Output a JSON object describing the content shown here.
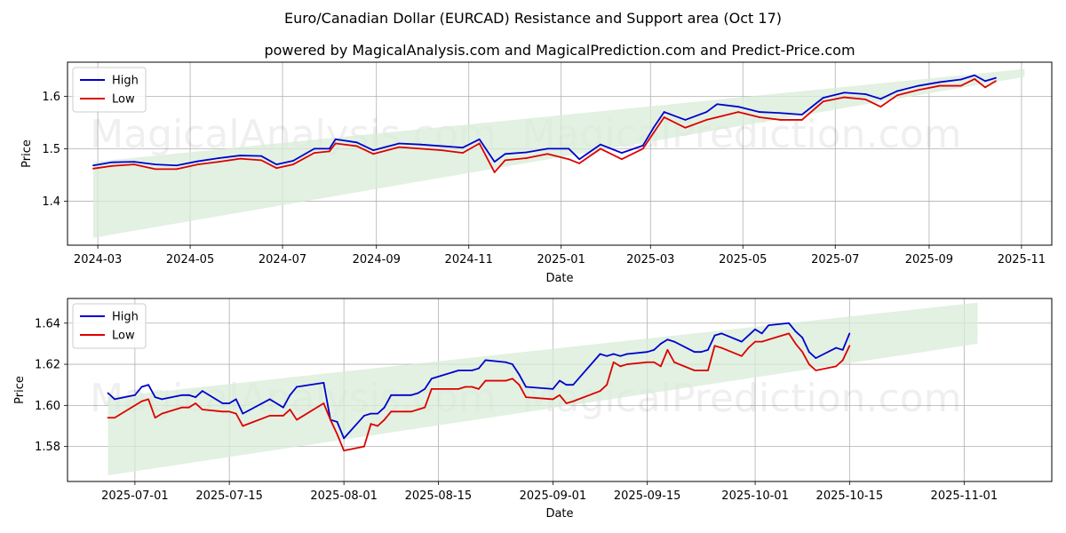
{
  "title": "Euro/Canadian Dollar (EURCAD) Resistance and Support area (Oct 17)",
  "subtitle": "powered by MagicalAnalysis.com and MagicalPrediction.com and Predict-Price.com",
  "watermarks": [
    "MagicalAnalysis.com",
    "MagicalPrediction.com"
  ],
  "colors": {
    "high": "#0000cc",
    "low": "#dd0000",
    "band": "#d8ecd8",
    "grid": "#b0b0b0"
  },
  "chart_data": [
    {
      "type": "line",
      "name": "full-range",
      "xlabel": "Date",
      "ylabel": "Price",
      "x_range": [
        "2024-02-10",
        "2025-11-21"
      ],
      "ylim": [
        1.316,
        1.665
      ],
      "x_ticks": [
        "2024-03",
        "2024-05",
        "2024-07",
        "2024-09",
        "2024-11",
        "2025-01",
        "2025-03",
        "2025-05",
        "2025-07",
        "2025-09",
        "2025-11"
      ],
      "y_ticks": [
        "1.4",
        "1.5",
        "1.6"
      ],
      "legend": {
        "position": "top-left",
        "entries": [
          "High",
          "Low"
        ]
      },
      "band": {
        "start": "2024-02-27",
        "end": "2025-11-03",
        "upper": [
          1.475,
          1.652
        ],
        "lower": [
          1.33,
          1.637
        ]
      },
      "x": [
        "2024-02-27",
        "2024-03-10",
        "2024-03-25",
        "2024-04-08",
        "2024-04-22",
        "2024-05-06",
        "2024-05-20",
        "2024-06-03",
        "2024-06-17",
        "2024-06-27",
        "2024-07-08",
        "2024-07-22",
        "2024-08-01",
        "2024-08-05",
        "2024-08-19",
        "2024-08-30",
        "2024-09-16",
        "2024-09-30",
        "2024-10-14",
        "2024-10-28",
        "2024-11-08",
        "2024-11-18",
        "2024-11-25",
        "2024-12-09",
        "2024-12-23",
        "2025-01-06",
        "2025-01-13",
        "2025-01-27",
        "2025-02-10",
        "2025-02-24",
        "2025-03-03",
        "2025-03-10",
        "2025-03-24",
        "2025-04-07",
        "2025-04-14",
        "2025-04-28",
        "2025-05-12",
        "2025-05-26",
        "2025-06-09",
        "2025-06-23",
        "2025-07-07",
        "2025-07-21",
        "2025-07-31",
        "2025-08-11",
        "2025-08-25",
        "2025-09-08",
        "2025-09-22",
        "2025-10-01",
        "2025-10-08",
        "2025-10-15"
      ],
      "series": [
        {
          "name": "High",
          "values": [
            1.468,
            1.474,
            1.475,
            1.47,
            1.468,
            1.476,
            1.482,
            1.487,
            1.486,
            1.47,
            1.477,
            1.5,
            1.5,
            1.518,
            1.512,
            1.497,
            1.51,
            1.508,
            1.505,
            1.502,
            1.518,
            1.475,
            1.49,
            1.493,
            1.5,
            1.5,
            1.48,
            1.508,
            1.492,
            1.506,
            1.54,
            1.57,
            1.555,
            1.57,
            1.585,
            1.58,
            1.57,
            1.568,
            1.565,
            1.597,
            1.607,
            1.604,
            1.595,
            1.61,
            1.62,
            1.627,
            1.632,
            1.64,
            1.629,
            1.635
          ]
        },
        {
          "name": "Low",
          "values": [
            1.462,
            1.467,
            1.47,
            1.461,
            1.461,
            1.47,
            1.475,
            1.481,
            1.478,
            1.463,
            1.47,
            1.492,
            1.495,
            1.51,
            1.505,
            1.49,
            1.503,
            1.5,
            1.497,
            1.492,
            1.51,
            1.455,
            1.478,
            1.482,
            1.49,
            1.48,
            1.472,
            1.5,
            1.48,
            1.5,
            1.53,
            1.56,
            1.54,
            1.555,
            1.56,
            1.57,
            1.56,
            1.555,
            1.555,
            1.59,
            1.598,
            1.594,
            1.58,
            1.602,
            1.612,
            1.62,
            1.62,
            1.633,
            1.617,
            1.629
          ]
        }
      ]
    },
    {
      "type": "line",
      "name": "zoomed",
      "xlabel": "Date",
      "ylabel": "Price",
      "x_range": [
        "2025-06-21",
        "2025-11-14"
      ],
      "ylim": [
        1.563,
        1.652
      ],
      "x_ticks": [
        "2025-07-01",
        "2025-07-15",
        "2025-08-01",
        "2025-08-15",
        "2025-09-01",
        "2025-09-15",
        "2025-10-01",
        "2025-10-15",
        "2025-11-01"
      ],
      "y_ticks": [
        "1.58",
        "1.60",
        "1.62",
        "1.64"
      ],
      "legend": {
        "position": "top-left",
        "entries": [
          "High",
          "Low"
        ]
      },
      "band": {
        "start": "2025-06-27",
        "end": "2025-11-03",
        "upper": [
          1.604,
          1.65
        ],
        "lower": [
          1.566,
          1.63
        ]
      },
      "x": [
        "2025-06-27",
        "2025-06-28",
        "2025-07-01",
        "2025-07-02",
        "2025-07-03",
        "2025-07-04",
        "2025-07-05",
        "2025-07-08",
        "2025-07-09",
        "2025-07-10",
        "2025-07-11",
        "2025-07-14",
        "2025-07-15",
        "2025-07-16",
        "2025-07-17",
        "2025-07-21",
        "2025-07-22",
        "2025-07-23",
        "2025-07-24",
        "2025-07-25",
        "2025-07-29",
        "2025-07-30",
        "2025-07-31",
        "2025-08-01",
        "2025-08-04",
        "2025-08-05",
        "2025-08-06",
        "2025-08-07",
        "2025-08-08",
        "2025-08-11",
        "2025-08-12",
        "2025-08-13",
        "2025-08-14",
        "2025-08-18",
        "2025-08-19",
        "2025-08-20",
        "2025-08-21",
        "2025-08-22",
        "2025-08-25",
        "2025-08-26",
        "2025-08-27",
        "2025-08-28",
        "2025-09-01",
        "2025-09-02",
        "2025-09-03",
        "2025-09-04",
        "2025-09-08",
        "2025-09-09",
        "2025-09-10",
        "2025-09-11",
        "2025-09-12",
        "2025-09-15",
        "2025-09-16",
        "2025-09-17",
        "2025-09-18",
        "2025-09-19",
        "2025-09-22",
        "2025-09-23",
        "2025-09-24",
        "2025-09-25",
        "2025-09-26",
        "2025-09-29",
        "2025-09-30",
        "2025-10-01",
        "2025-10-02",
        "2025-10-03",
        "2025-10-06",
        "2025-10-07",
        "2025-10-08",
        "2025-10-09",
        "2025-10-10",
        "2025-10-13",
        "2025-10-14",
        "2025-10-15"
      ],
      "series": [
        {
          "name": "High",
          "values": [
            1.606,
            1.603,
            1.605,
            1.609,
            1.61,
            1.604,
            1.603,
            1.605,
            1.605,
            1.604,
            1.607,
            1.601,
            1.601,
            1.603,
            1.596,
            1.603,
            1.601,
            1.599,
            1.605,
            1.609,
            1.611,
            1.593,
            1.592,
            1.584,
            1.595,
            1.596,
            1.596,
            1.599,
            1.605,
            1.605,
            1.606,
            1.608,
            1.613,
            1.617,
            1.617,
            1.617,
            1.618,
            1.622,
            1.621,
            1.62,
            1.615,
            1.609,
            1.608,
            1.612,
            1.61,
            1.61,
            1.625,
            1.624,
            1.625,
            1.624,
            1.625,
            1.626,
            1.627,
            1.63,
            1.632,
            1.631,
            1.626,
            1.626,
            1.627,
            1.634,
            1.635,
            1.631,
            1.634,
            1.637,
            1.635,
            1.639,
            1.64,
            1.636,
            1.633,
            1.626,
            1.623,
            1.628,
            1.627,
            1.635
          ]
        },
        {
          "name": "Low",
          "values": [
            1.594,
            1.594,
            1.6,
            1.602,
            1.603,
            1.594,
            1.596,
            1.599,
            1.599,
            1.601,
            1.598,
            1.597,
            1.597,
            1.596,
            1.59,
            1.595,
            1.595,
            1.595,
            1.598,
            1.593,
            1.601,
            1.593,
            1.586,
            1.578,
            1.58,
            1.591,
            1.59,
            1.593,
            1.597,
            1.597,
            1.598,
            1.599,
            1.608,
            1.608,
            1.609,
            1.609,
            1.608,
            1.612,
            1.612,
            1.613,
            1.61,
            1.604,
            1.603,
            1.605,
            1.601,
            1.602,
            1.607,
            1.61,
            1.621,
            1.619,
            1.62,
            1.621,
            1.621,
            1.619,
            1.627,
            1.621,
            1.617,
            1.617,
            1.617,
            1.629,
            1.628,
            1.624,
            1.628,
            1.631,
            1.631,
            1.632,
            1.635,
            1.63,
            1.626,
            1.62,
            1.617,
            1.619,
            1.622,
            1.629
          ]
        }
      ]
    }
  ]
}
